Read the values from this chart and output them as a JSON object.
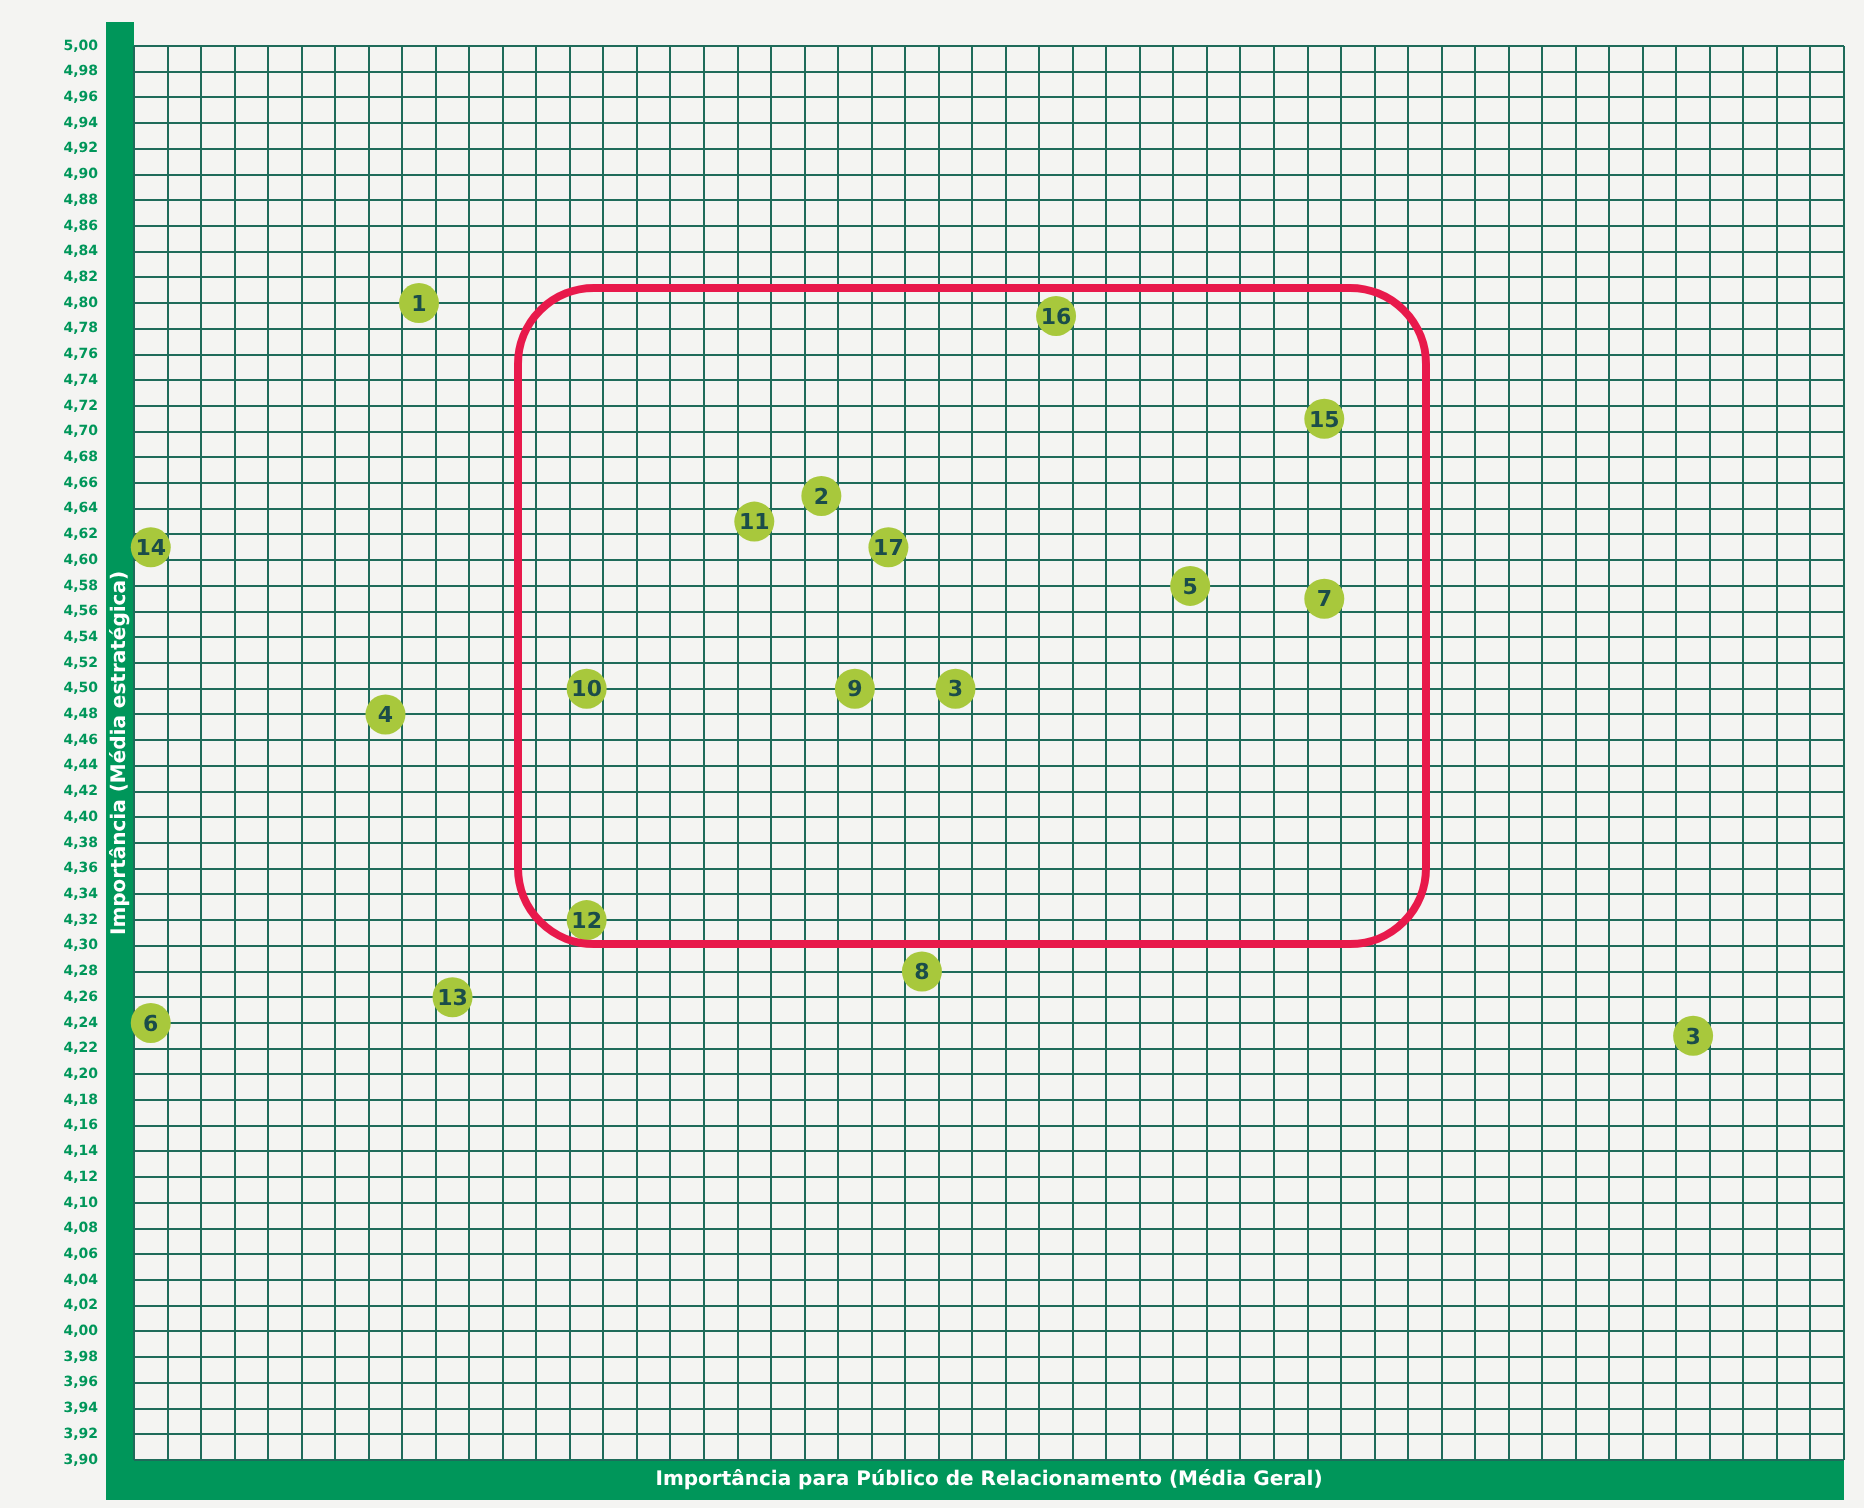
{
  "chart_data": {
    "type": "scatter",
    "xlabel": "Importância para Público de Relacionamento (Média Geral)",
    "ylabel": "Importância (Média estratégica)",
    "categories": [
      null,
      null,
      null,
      null,
      null,
      null,
      null,
      null,
      null,
      null,
      null,
      null,
      null,
      null,
      null,
      null,
      null,
      null,
      null,
      null,
      null,
      null,
      null,
      null,
      null,
      null,
      null,
      null,
      null,
      null,
      null,
      null,
      null,
      null,
      null,
      null,
      null,
      null,
      null,
      null,
      null,
      null,
      null,
      null,
      null,
      null,
      null,
      null,
      null,
      null,
      null
    ],
    "series": [
      {
        "name": "1",
        "color": "#a8c83c",
        "values": [
          null,
          null,
          null,
          null,
          null,
          null,
          null,
          null,
          4.8,
          null,
          null,
          null,
          null,
          null,
          null,
          null,
          null,
          null,
          null,
          null,
          null,
          null,
          null,
          null,
          null,
          null,
          null,
          null,
          null,
          null,
          null,
          null,
          null,
          null,
          null,
          null,
          null,
          null,
          null,
          null,
          null,
          null,
          null,
          null,
          null,
          null,
          null,
          null,
          null,
          null,
          null
        ]
      },
      {
        "name": "2",
        "color": "#a8c83c",
        "values": [
          null,
          null,
          null,
          null,
          null,
          null,
          null,
          null,
          null,
          null,
          null,
          null,
          null,
          null,
          null,
          null,
          null,
          null,
          null,
          null,
          4.65,
          null,
          null,
          null,
          null,
          null,
          null,
          null,
          null,
          null,
          null,
          null,
          null,
          null,
          null,
          null,
          null,
          null,
          null,
          null,
          null,
          null,
          null,
          null,
          null,
          null,
          null,
          null,
          null,
          null,
          null
        ]
      },
      {
        "name": "3",
        "color": "#a8c83c",
        "values": [
          null,
          null,
          null,
          null,
          null,
          null,
          null,
          null,
          null,
          null,
          null,
          null,
          null,
          null,
          null,
          null,
          null,
          null,
          null,
          null,
          null,
          null,
          null,
          null,
          4.5,
          null,
          null,
          null,
          null,
          null,
          null,
          null,
          null,
          null,
          null,
          null,
          null,
          null,
          null,
          null,
          null,
          null,
          null,
          null,
          null,
          null,
          null,
          null,
          null,
          null,
          null
        ]
      },
      {
        "name": "3",
        "color": "#a8c83c",
        "values": [
          null,
          null,
          null,
          null,
          null,
          null,
          null,
          null,
          null,
          null,
          null,
          null,
          null,
          null,
          null,
          null,
          null,
          null,
          null,
          null,
          null,
          null,
          null,
          null,
          null,
          null,
          null,
          null,
          null,
          null,
          null,
          null,
          null,
          null,
          null,
          null,
          null,
          null,
          null,
          null,
          null,
          null,
          null,
          null,
          null,
          null,
          4.23,
          null,
          null,
          null,
          null
        ]
      },
      {
        "name": "4",
        "color": "#a8c83c",
        "values": [
          null,
          null,
          null,
          null,
          null,
          null,
          null,
          4.48,
          null,
          null,
          null,
          null,
          null,
          null,
          null,
          null,
          null,
          null,
          null,
          null,
          null,
          null,
          null,
          null,
          null,
          null,
          null,
          null,
          null,
          null,
          null,
          null,
          null,
          null,
          null,
          null,
          null,
          null,
          null,
          null,
          null,
          null,
          null,
          null,
          null,
          null,
          null,
          null,
          null,
          null,
          null
        ]
      },
      {
        "name": "5",
        "color": "#a8c83c",
        "values": [
          null,
          null,
          null,
          null,
          null,
          null,
          null,
          null,
          null,
          null,
          null,
          null,
          null,
          null,
          null,
          null,
          null,
          null,
          null,
          null,
          null,
          null,
          null,
          null,
          null,
          null,
          null,
          null,
          null,
          null,
          null,
          4.58,
          null,
          null,
          null,
          null,
          null,
          null,
          null,
          null,
          null,
          null,
          null,
          null,
          null,
          null,
          null,
          null,
          null,
          null,
          null
        ]
      },
      {
        "name": "6",
        "color": "#a8c83c",
        "values": [
          4.24,
          null,
          null,
          null,
          null,
          null,
          null,
          null,
          null,
          null,
          null,
          null,
          null,
          null,
          null,
          null,
          null,
          null,
          null,
          null,
          null,
          null,
          null,
          null,
          null,
          null,
          null,
          null,
          null,
          null,
          null,
          null,
          null,
          null,
          null,
          null,
          null,
          null,
          null,
          null,
          null,
          null,
          null,
          null,
          null,
          null,
          null,
          null,
          null,
          null,
          null
        ]
      },
      {
        "name": "7",
        "color": "#a8c83c",
        "values": [
          null,
          null,
          null,
          null,
          null,
          null,
          null,
          null,
          null,
          null,
          null,
          null,
          null,
          null,
          null,
          null,
          null,
          null,
          null,
          null,
          null,
          null,
          null,
          null,
          null,
          null,
          null,
          null,
          null,
          null,
          null,
          null,
          null,
          null,
          null,
          4.57,
          null,
          null,
          null,
          null,
          null,
          null,
          null,
          null,
          null,
          null,
          null,
          null,
          null,
          null,
          null
        ]
      },
      {
        "name": "8",
        "color": "#a8c83c",
        "values": [
          null,
          null,
          null,
          null,
          null,
          null,
          null,
          null,
          null,
          null,
          null,
          null,
          null,
          null,
          null,
          null,
          null,
          null,
          null,
          null,
          null,
          null,
          null,
          4.28,
          null,
          null,
          null,
          null,
          null,
          null,
          null,
          null,
          null,
          null,
          null,
          null,
          null,
          null,
          null,
          null,
          null,
          null,
          null,
          null,
          null,
          null,
          null,
          null,
          null,
          null,
          null
        ]
      },
      {
        "name": "9",
        "color": "#a8c83c",
        "values": [
          null,
          null,
          null,
          null,
          null,
          null,
          null,
          null,
          null,
          null,
          null,
          null,
          null,
          null,
          null,
          null,
          null,
          null,
          null,
          null,
          null,
          4.5,
          null,
          null,
          null,
          null,
          null,
          null,
          null,
          null,
          null,
          null,
          null,
          null,
          null,
          null,
          null,
          null,
          null,
          null,
          null,
          null,
          null,
          null,
          null,
          null,
          null,
          null,
          null,
          null,
          null
        ]
      },
      {
        "name": "10",
        "color": "#a8c83c",
        "values": [
          null,
          null,
          null,
          null,
          null,
          null,
          null,
          null,
          null,
          null,
          null,
          null,
          null,
          4.5,
          null,
          null,
          null,
          null,
          null,
          null,
          null,
          null,
          null,
          null,
          null,
          null,
          null,
          null,
          null,
          null,
          null,
          null,
          null,
          null,
          null,
          null,
          null,
          null,
          null,
          null,
          null,
          null,
          null,
          null,
          null,
          null,
          null,
          null,
          null,
          null,
          null
        ]
      },
      {
        "name": "11",
        "color": "#a8c83c",
        "values": [
          null,
          null,
          null,
          null,
          null,
          null,
          null,
          null,
          null,
          null,
          null,
          null,
          null,
          null,
          null,
          null,
          null,
          null,
          4.63,
          null,
          null,
          null,
          null,
          null,
          null,
          null,
          null,
          null,
          null,
          null,
          null,
          null,
          null,
          null,
          null,
          null,
          null,
          null,
          null,
          null,
          null,
          null,
          null,
          null,
          null,
          null,
          null,
          null,
          null,
          null,
          null
        ]
      },
      {
        "name": "12",
        "color": "#a8c83c",
        "values": [
          null,
          null,
          null,
          null,
          null,
          null,
          null,
          null,
          null,
          null,
          null,
          null,
          null,
          4.32,
          null,
          null,
          null,
          null,
          null,
          null,
          null,
          null,
          null,
          null,
          null,
          null,
          null,
          null,
          null,
          null,
          null,
          null,
          null,
          null,
          null,
          null,
          null,
          null,
          null,
          null,
          null,
          null,
          null,
          null,
          null,
          null,
          null,
          null,
          null,
          null,
          null
        ]
      },
      {
        "name": "13",
        "color": "#a8c83c",
        "values": [
          null,
          null,
          null,
          null,
          null,
          null,
          null,
          null,
          null,
          4.26,
          null,
          null,
          null,
          null,
          null,
          null,
          null,
          null,
          null,
          null,
          null,
          null,
          null,
          null,
          null,
          null,
          null,
          null,
          null,
          null,
          null,
          null,
          null,
          null,
          null,
          null,
          null,
          null,
          null,
          null,
          null,
          null,
          null,
          null,
          null,
          null,
          null,
          null,
          null,
          null,
          null
        ]
      },
      {
        "name": "14",
        "color": "#a8c83c",
        "values": [
          4.61,
          null,
          null,
          null,
          null,
          null,
          null,
          null,
          null,
          null,
          null,
          null,
          null,
          null,
          null,
          null,
          null,
          null,
          null,
          null,
          null,
          null,
          null,
          null,
          null,
          null,
          null,
          null,
          null,
          null,
          null,
          null,
          null,
          null,
          null,
          null,
          null,
          null,
          null,
          null,
          null,
          null,
          null,
          null,
          null,
          null,
          null,
          null,
          null,
          null,
          null
        ]
      },
      {
        "name": "15",
        "color": "#a8c83c",
        "values": [
          null,
          null,
          null,
          null,
          null,
          null,
          null,
          null,
          null,
          null,
          null,
          null,
          null,
          null,
          null,
          null,
          null,
          null,
          null,
          null,
          null,
          null,
          null,
          null,
          null,
          null,
          null,
          null,
          null,
          null,
          null,
          null,
          null,
          null,
          null,
          4.71,
          null,
          null,
          null,
          null,
          null,
          null,
          null,
          null,
          null,
          null,
          null,
          null,
          null,
          null,
          null
        ]
      },
      {
        "name": "16",
        "color": "#a8c83c",
        "values": [
          null,
          null,
          null,
          null,
          null,
          null,
          null,
          null,
          null,
          null,
          null,
          null,
          null,
          null,
          null,
          null,
          null,
          null,
          null,
          null,
          null,
          null,
          null,
          null,
          null,
          null,
          null,
          4.79,
          null,
          null,
          null,
          null,
          null,
          null,
          null,
          null,
          null,
          null,
          null,
          null,
          null,
          null,
          null,
          null,
          null,
          null,
          null,
          null,
          null,
          null,
          null
        ]
      },
      {
        "name": "17",
        "color": "#a8c83c",
        "values": [
          null,
          null,
          null,
          null,
          null,
          null,
          null,
          null,
          null,
          null,
          null,
          null,
          null,
          null,
          null,
          null,
          null,
          null,
          null,
          null,
          null,
          null,
          4.61,
          null,
          null,
          null,
          null,
          null,
          null,
          null,
          null,
          null,
          null,
          null,
          null,
          null,
          null,
          null,
          null,
          null,
          null,
          null,
          null,
          null,
          null,
          null,
          null,
          null,
          null,
          null,
          null
        ]
      }
    ],
    "marker": "circle",
    "grid": true,
    "tick_labels": "y",
    "ylim": [
      3.9,
      5.0
    ],
    "yticks": [
      {
        "value": 3.9,
        "label": "3,90"
      },
      {
        "value": 3.92,
        "label": "3,92"
      },
      {
        "value": 3.94,
        "label": "3,94"
      },
      {
        "value": 3.96,
        "label": "3,96"
      },
      {
        "value": 3.98,
        "label": "3,98"
      },
      {
        "value": 4.0,
        "label": "4,00"
      },
      {
        "value": 4.02,
        "label": "4,02"
      },
      {
        "value": 4.04,
        "label": "4,04"
      },
      {
        "value": 4.06,
        "label": "4,06"
      },
      {
        "value": 4.08,
        "label": "4,08"
      },
      {
        "value": 4.1,
        "label": "4,10"
      },
      {
        "value": 4.12,
        "label": "4,12"
      },
      {
        "value": 4.14,
        "label": "4,14"
      },
      {
        "value": 4.16,
        "label": "4,16"
      },
      {
        "value": 4.18,
        "label": "4,18"
      },
      {
        "value": 4.2,
        "label": "4,20"
      },
      {
        "value": 4.22,
        "label": "4,22"
      },
      {
        "value": 4.24,
        "label": "4,24"
      },
      {
        "value": 4.26,
        "label": "4,26"
      },
      {
        "value": 4.28,
        "label": "4,28"
      },
      {
        "value": 4.3,
        "label": "4,30"
      },
      {
        "value": 4.32,
        "label": "4,32"
      },
      {
        "value": 4.34,
        "label": "4,34"
      },
      {
        "value": 4.36,
        "label": "4,36"
      },
      {
        "value": 4.38,
        "label": "4,38"
      },
      {
        "value": 4.4,
        "label": "4,40"
      },
      {
        "value": 4.42,
        "label": "4,42"
      },
      {
        "value": 4.44,
        "label": "4,44"
      },
      {
        "value": 4.46,
        "label": "4,46"
      },
      {
        "value": 4.48,
        "label": "4,48"
      },
      {
        "value": 4.5,
        "label": "4,50"
      },
      {
        "value": 4.52,
        "label": "4,52"
      },
      {
        "value": 4.54,
        "label": "4,54"
      },
      {
        "value": 4.56,
        "label": "4,56"
      },
      {
        "value": 4.58,
        "label": "4,58"
      },
      {
        "value": 4.6,
        "label": "4,60"
      },
      {
        "value": 4.62,
        "label": "4,62"
      },
      {
        "value": 4.64,
        "label": "4,64"
      },
      {
        "value": 4.66,
        "label": "4,66"
      },
      {
        "value": 4.68,
        "label": "4,68"
      },
      {
        "value": 4.7,
        "label": "4,70"
      },
      {
        "value": 4.72,
        "label": "4,72"
      },
      {
        "value": 4.74,
        "label": "4,74"
      },
      {
        "value": 4.76,
        "label": "4,76"
      },
      {
        "value": 4.78,
        "label": "4,78"
      },
      {
        "value": 4.8,
        "label": "4,80"
      },
      {
        "value": 4.82,
        "label": "4,82"
      },
      {
        "value": 4.84,
        "label": "4,84"
      },
      {
        "value": 4.86,
        "label": "4,86"
      },
      {
        "value": 4.88,
        "label": "4,88"
      },
      {
        "value": 4.9,
        "label": "4,90"
      },
      {
        "value": 4.92,
        "label": "4,92"
      },
      {
        "value": 4.94,
        "label": "4,94"
      },
      {
        "value": 4.96,
        "label": "4,96"
      },
      {
        "value": 4.98,
        "label": "4,98"
      },
      {
        "value": 5.0,
        "label": "5,00"
      }
    ]
  }
}
